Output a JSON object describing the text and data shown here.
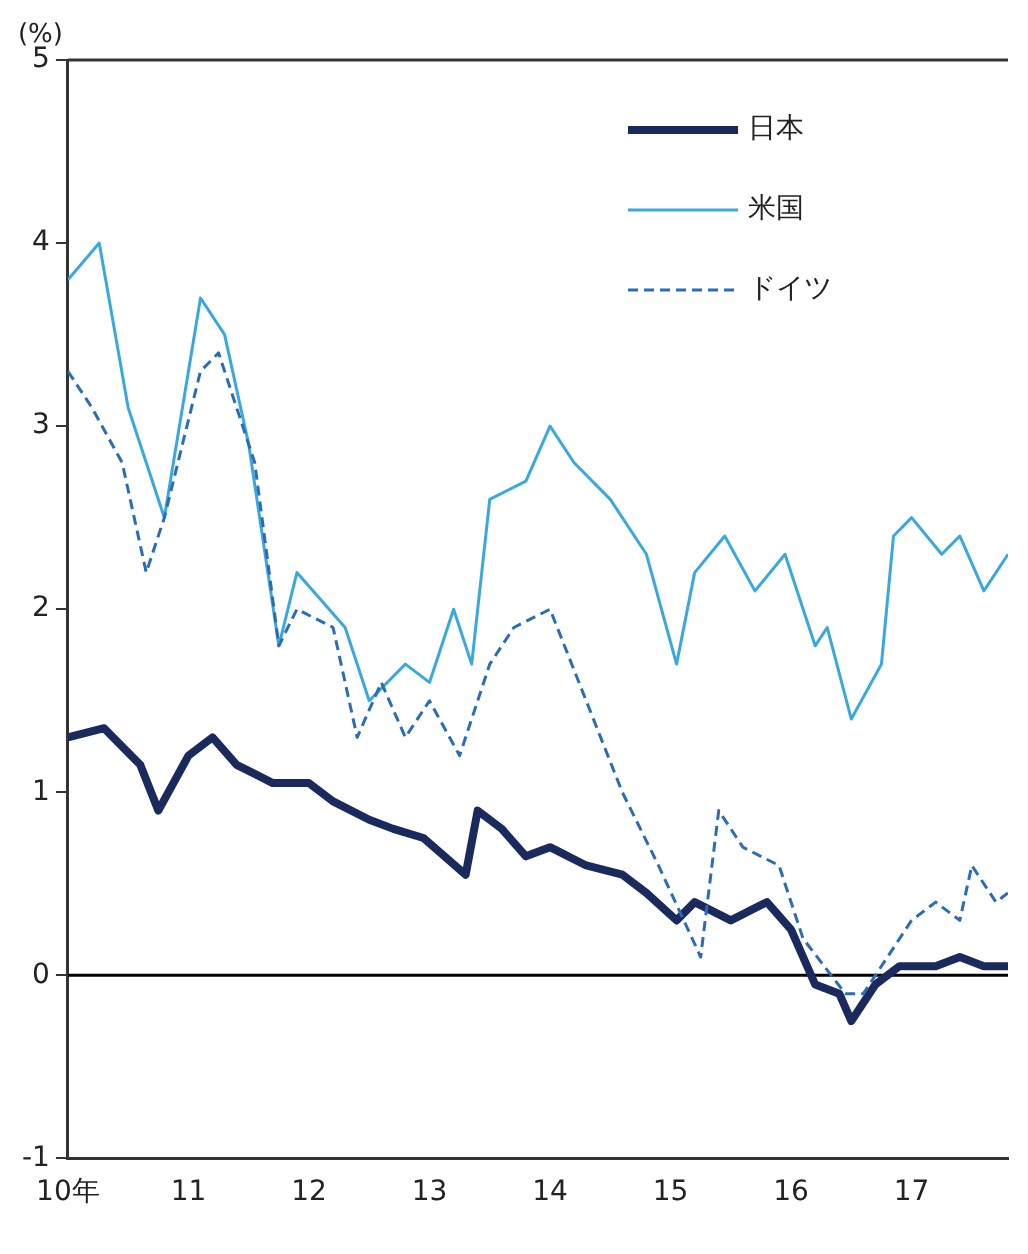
{
  "chart_data": {
    "type": "line",
    "ylabel": "(%)",
    "xlim": [
      10,
      17.8
    ],
    "xticks": [
      {
        "value": 10,
        "label": "10年"
      },
      11,
      12,
      13,
      14,
      15,
      16,
      17
    ],
    "ylim": [
      -1,
      5
    ],
    "yticks": [
      -1,
      0,
      1,
      2,
      3,
      4,
      5
    ],
    "grid": false,
    "legend": "top right",
    "marker": "none",
    "ref_lines": [
      {
        "axis": "y",
        "value": 0,
        "color": "#000000"
      }
    ],
    "series": [
      {
        "name": "日本",
        "color": "#1b2a5c",
        "line_style": "solid",
        "x": [
          10,
          10.3,
          10.6,
          10.75,
          11.0,
          11.2,
          11.4,
          11.7,
          12.0,
          12.2,
          12.5,
          12.7,
          12.95,
          13.3,
          13.4,
          13.6,
          13.8,
          14.0,
          14.3,
          14.6,
          14.8,
          15.05,
          15.2,
          15.5,
          15.8,
          16.0,
          16.2,
          16.4,
          16.5,
          16.7,
          16.9,
          17.2,
          17.4,
          17.6,
          17.8
        ],
        "values": [
          1.3,
          1.35,
          1.15,
          0.9,
          1.2,
          1.3,
          1.15,
          1.05,
          1.05,
          0.95,
          0.85,
          0.8,
          0.75,
          0.55,
          0.9,
          0.8,
          0.65,
          0.7,
          0.6,
          0.55,
          0.45,
          0.3,
          0.4,
          0.3,
          0.4,
          0.25,
          -0.05,
          -0.1,
          -0.25,
          -0.05,
          0.05,
          0.05,
          0.1,
          0.05,
          0.05
        ]
      },
      {
        "name": "米国",
        "color": "#3aa8e0",
        "line_style": "solid",
        "x": [
          10,
          10.26,
          10.5,
          10.8,
          11.1,
          11.3,
          11.5,
          11.75,
          11.9,
          12.3,
          12.5,
          12.8,
          13.0,
          13.2,
          13.35,
          13.5,
          13.8,
          14.0,
          14.2,
          14.5,
          14.8,
          15.05,
          15.2,
          15.45,
          15.7,
          15.95,
          16.2,
          16.3,
          16.5,
          16.75,
          16.85,
          17.0,
          17.25,
          17.4,
          17.6,
          17.8
        ],
        "values": [
          3.8,
          4.0,
          3.1,
          2.5,
          3.7,
          3.5,
          2.9,
          1.8,
          2.2,
          1.9,
          1.5,
          1.7,
          1.6,
          2.0,
          1.7,
          2.6,
          2.7,
          3.0,
          2.8,
          2.6,
          2.3,
          1.7,
          2.2,
          2.4,
          2.1,
          2.3,
          1.8,
          1.9,
          1.4,
          1.7,
          2.4,
          2.5,
          2.3,
          2.4,
          2.1,
          2.3
        ]
      },
      {
        "name": "ドイツ",
        "color": "#2a6db5",
        "line_style": "dashed",
        "x": [
          10,
          10.2,
          10.45,
          10.65,
          10.8,
          11.1,
          11.25,
          11.55,
          11.75,
          11.9,
          12.2,
          12.4,
          12.6,
          12.8,
          13.0,
          13.25,
          13.5,
          13.7,
          14.0,
          14.3,
          14.6,
          14.9,
          15.25,
          15.4,
          15.6,
          15.9,
          16.1,
          16.45,
          16.6,
          16.8,
          17.0,
          17.2,
          17.4,
          17.5,
          17.7,
          17.8
        ],
        "values": [
          3.3,
          3.1,
          2.8,
          2.2,
          2.5,
          3.3,
          3.4,
          2.8,
          1.8,
          2.0,
          1.9,
          1.3,
          1.6,
          1.3,
          1.5,
          1.2,
          1.7,
          1.9,
          2.0,
          1.5,
          1.0,
          0.6,
          0.1,
          0.9,
          0.7,
          0.6,
          0.2,
          -0.1,
          -0.1,
          0.1,
          0.3,
          0.4,
          0.3,
          0.6,
          0.4,
          0.45
        ]
      }
    ]
  }
}
